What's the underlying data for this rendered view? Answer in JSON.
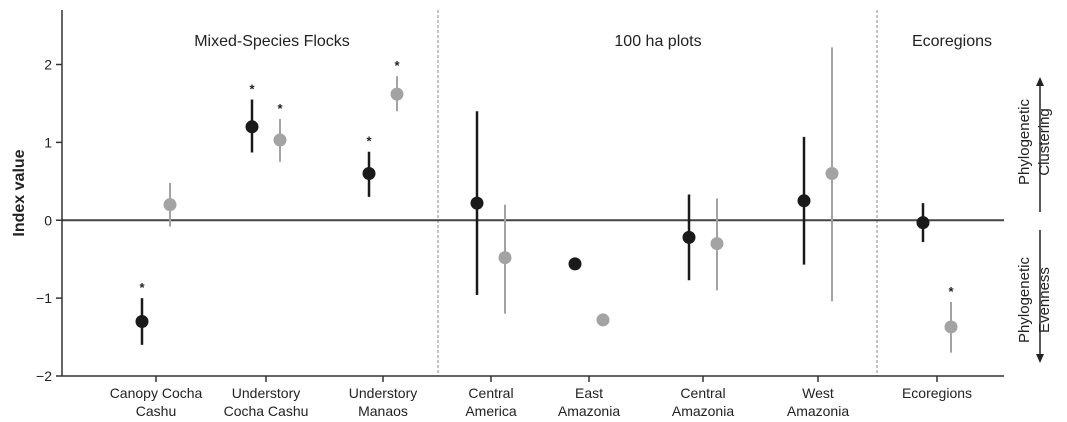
{
  "chart_data": {
    "type": "scatter",
    "title": "",
    "xlabel": "",
    "ylabel": "Index value",
    "ylim": [
      -2,
      2.7
    ],
    "yticks": [
      2,
      1,
      0,
      -1,
      -2
    ],
    "yticklabels": [
      "2",
      "1",
      "0",
      "−1",
      "−2"
    ],
    "grid": false,
    "panels": [
      "Mixed-Species Flocks",
      "100 ha plots",
      "Ecoregions"
    ],
    "side_labels": {
      "upper": [
        "Phylogenetic",
        "Clustering"
      ],
      "lower": [
        "Phylogenetic",
        "Evenness"
      ]
    },
    "significance_marker": "*",
    "colors": {
      "dark": "#1a1a1a",
      "light": "#a3a3a3",
      "divider": "#b0b0b0",
      "axis": "#333333"
    },
    "categories": [
      {
        "label": [
          "Canopy Cocha",
          "Cashu"
        ],
        "panel": 0
      },
      {
        "label": [
          "Understory",
          "Cocha Cashu"
        ],
        "panel": 0
      },
      {
        "label": [
          "Understory",
          "Manaos"
        ],
        "panel": 0
      },
      {
        "label": [
          "Central",
          "America"
        ],
        "panel": 1
      },
      {
        "label": [
          "East",
          "Amazonia"
        ],
        "panel": 1
      },
      {
        "label": [
          "Central",
          "Amazonia"
        ],
        "panel": 1
      },
      {
        "label": [
          "West",
          "Amazonia"
        ],
        "panel": 1
      },
      {
        "label": [
          "Ecoregions"
        ],
        "panel": 2
      }
    ],
    "series": [
      {
        "shade": "dark",
        "points": [
          {
            "category": 0,
            "y": -1.3,
            "low": -1.6,
            "high": -1.0,
            "sig": true
          },
          {
            "category": 1,
            "y": 1.2,
            "low": 0.87,
            "high": 1.55,
            "sig": true
          },
          {
            "category": 2,
            "y": 0.6,
            "low": 0.3,
            "high": 0.88,
            "sig": true
          },
          {
            "category": 3,
            "y": 0.22,
            "low": -0.96,
            "high": 1.4,
            "sig": false
          },
          {
            "category": 4,
            "y": -0.56,
            "low": -0.56,
            "high": -0.56,
            "sig": false
          },
          {
            "category": 5,
            "y": -0.22,
            "low": -0.77,
            "high": 0.33,
            "sig": false
          },
          {
            "category": 6,
            "y": 0.25,
            "low": -0.57,
            "high": 1.07,
            "sig": false
          },
          {
            "category": 7,
            "y": -0.03,
            "low": -0.28,
            "high": 0.22,
            "sig": false
          }
        ]
      },
      {
        "shade": "light",
        "points": [
          {
            "category": 0,
            "y": 0.2,
            "low": -0.08,
            "high": 0.48,
            "sig": false
          },
          {
            "category": 1,
            "y": 1.03,
            "low": 0.75,
            "high": 1.3,
            "sig": true
          },
          {
            "category": 2,
            "y": 1.62,
            "low": 1.4,
            "high": 1.85,
            "sig": true
          },
          {
            "category": 3,
            "y": -0.48,
            "low": -1.2,
            "high": 0.2,
            "sig": false
          },
          {
            "category": 4,
            "y": -1.28,
            "low": -1.28,
            "high": -1.28,
            "sig": false
          },
          {
            "category": 5,
            "y": -0.3,
            "low": -0.9,
            "high": 0.28,
            "sig": false
          },
          {
            "category": 6,
            "y": 0.6,
            "low": -1.04,
            "high": 2.22,
            "sig": false
          },
          {
            "category": 7,
            "y": -1.37,
            "low": -1.7,
            "high": -1.05,
            "sig": true
          }
        ]
      }
    ]
  }
}
